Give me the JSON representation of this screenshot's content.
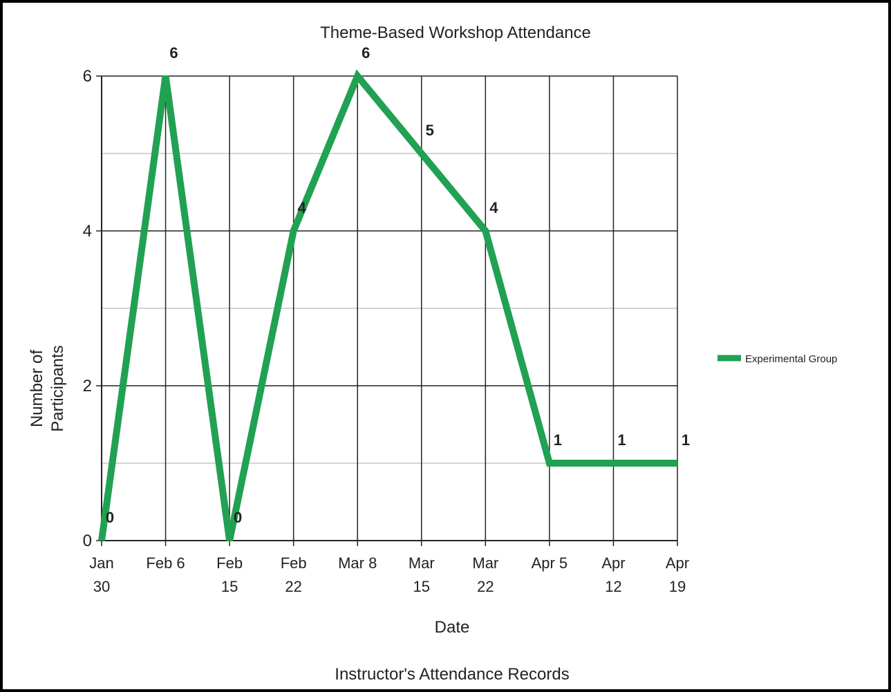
{
  "chart_data": {
    "type": "line",
    "title": "Theme-Based Workshop Attendance",
    "x_label": "Date",
    "y_label": "Number of Participants",
    "caption": "Instructor's Attendance Records",
    "categories": [
      "Jan 30",
      "Feb 6",
      "Feb 15",
      "Feb 22",
      "Mar 8",
      "Mar 15",
      "Mar 22",
      "Apr 5",
      "Apr 12",
      "Apr 19"
    ],
    "series": [
      {
        "name": "Experimental Group",
        "color": "#21a152",
        "values": [
          0,
          6,
          0,
          4,
          6,
          5,
          4,
          1,
          1,
          1
        ]
      }
    ],
    "ylim": [
      0,
      6
    ],
    "yticks": [
      0,
      2,
      4,
      6
    ],
    "minor_yticks": [
      1,
      3,
      5
    ],
    "grid": true,
    "legend": "right"
  }
}
